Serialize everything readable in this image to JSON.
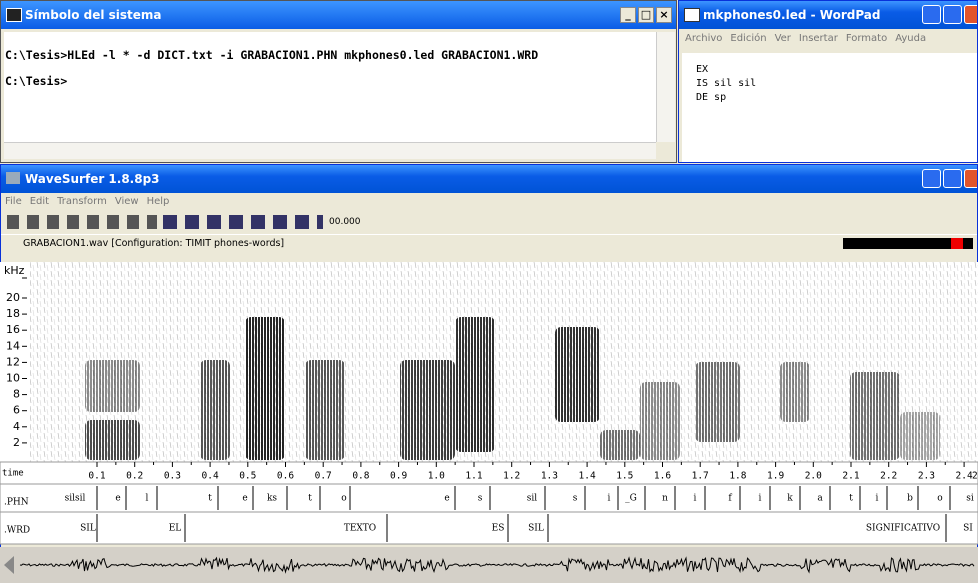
{
  "command_prompt": {
    "title": "Símbolo del sistema",
    "lines": [
      "C:\\Tesis>HLEd -l * -d DICT.txt -i GRABACION1.PHN mkphones0.led GRABACION1.WRD",
      "C:\\Tesis>"
    ]
  },
  "wordpad": {
    "title": "mkphones0.led - WordPad",
    "menu": [
      "Archivo",
      "Edición",
      "Ver",
      "Insertar",
      "Formato",
      "Ayuda"
    ],
    "lines": [
      "EX",
      "IS sil sil",
      "DE sp"
    ]
  },
  "wavesurfer": {
    "title": "WaveSurfer 1.8.8p3",
    "menu": [
      "File",
      "Edit",
      "Transform",
      "View",
      "Help"
    ],
    "time_display": "00.000",
    "file_info": "GRABACION1.wav  [Configuration: TIMIT phones-words]",
    "freq_unit": "kHz",
    "freq_ticks": [
      "20",
      "18",
      "16",
      "14",
      "12",
      "10",
      "8",
      "6",
      "4",
      "2"
    ],
    "time_label": "time",
    "time_ticks": [
      "0.1",
      "0.2",
      "0.3",
      "0.4",
      "0.5",
      "0.6",
      "0.7",
      "0.8",
      "0.9",
      "1.0",
      "1.1",
      "1.2",
      "1.3",
      "1.4",
      "1.5",
      "1.6",
      "1.7",
      "1.8",
      "1.9",
      "2.0",
      "2.1",
      "2.2",
      "2.3",
      "2.4",
      "2"
    ],
    "phn_tier": {
      "name": ".PHN",
      "labels": [
        "silsil",
        "e",
        "l",
        "t",
        "e",
        "ks",
        "t",
        "o",
        "e",
        "s",
        "sil",
        "s",
        "i",
        "_G",
        "n",
        "i",
        "f",
        "i",
        "k",
        "a",
        "t",
        "i",
        "b",
        "o",
        "si"
      ]
    },
    "wrd_tier": {
      "name": ".WRD",
      "labels": [
        "SIL",
        "EL",
        "TEXTO",
        "ES",
        "SIL",
        "SIGNIFICATIVO",
        "SI"
      ]
    }
  }
}
